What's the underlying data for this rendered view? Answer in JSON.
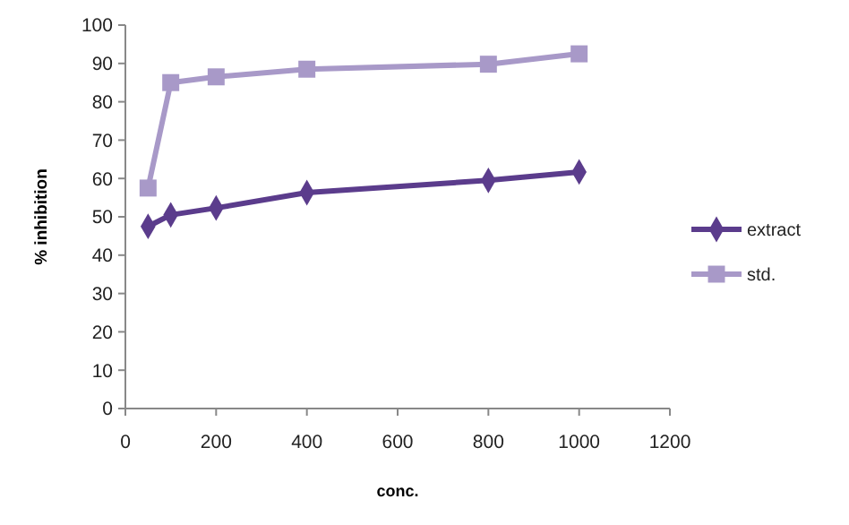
{
  "chart_data": {
    "type": "line",
    "xlabel": "conc.",
    "ylabel": "% inhibition",
    "x": [
      50,
      100,
      200,
      400,
      800,
      1000
    ],
    "xlim": [
      0,
      1200
    ],
    "xticks": [
      0,
      200,
      400,
      600,
      800,
      1000,
      1200
    ],
    "ylim": [
      0,
      100
    ],
    "yticks": [
      0,
      10,
      20,
      30,
      40,
      50,
      60,
      70,
      80,
      90,
      100
    ],
    "grid": false,
    "legend": "right",
    "series": [
      {
        "name": "extract",
        "color": "#5b3c8c",
        "marker": "diamond",
        "values": [
          47.5,
          50.5,
          52.3,
          56.3,
          59.5,
          61.7
        ]
      },
      {
        "name": "std.",
        "color": "#a899c8",
        "marker": "square",
        "values": [
          57.5,
          85,
          86.5,
          88.5,
          89.8,
          92.5
        ]
      }
    ]
  }
}
